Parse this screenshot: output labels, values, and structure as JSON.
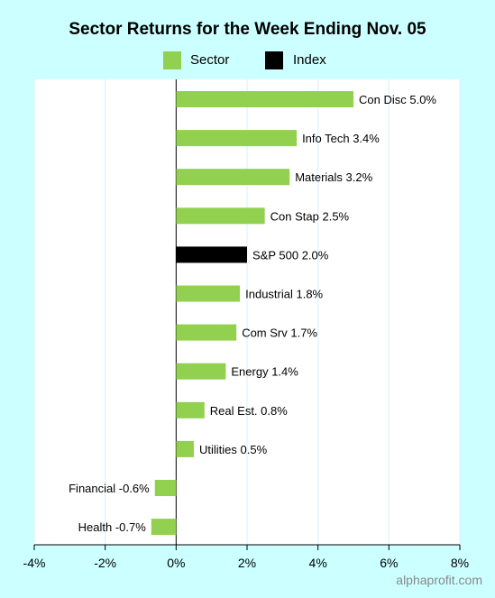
{
  "chart_data": {
    "type": "bar",
    "orientation": "horizontal",
    "title": "Sector Returns for the Week Ending Nov. 05",
    "xlabel": "",
    "ylabel": "",
    "xlim": [
      -4,
      8
    ],
    "x_ticks": [
      "-4%",
      "-2%",
      "0%",
      "2%",
      "4%",
      "6%",
      "8%"
    ],
    "x_tick_values": [
      -4,
      -2,
      0,
      2,
      4,
      6,
      8
    ],
    "grid": "vertical",
    "legend_placement": "top-center",
    "legend": [
      {
        "label": "Sector",
        "color": "#92d050"
      },
      {
        "label": "Index",
        "color": "#000000"
      }
    ],
    "categories": [
      "Con Disc",
      "Info Tech",
      "Materials",
      "Con Stap",
      "S&P 500",
      "Industrial",
      "Com Srv",
      "Energy",
      "Real Est.",
      "Utilities",
      "Financial",
      "Health"
    ],
    "values": [
      5.0,
      3.4,
      3.2,
      2.5,
      2.0,
      1.8,
      1.7,
      1.4,
      0.8,
      0.5,
      -0.6,
      -0.7
    ],
    "bar_labels": [
      "Con Disc 5.0%",
      "Info Tech 3.4%",
      "Materials 3.2%",
      "Con Stap 2.5%",
      "S&P 500 2.0%",
      "Industrial 1.8%",
      "Com Srv 1.7%",
      "Energy 1.4%",
      "Real Est. 0.8%",
      "Utilities 0.5%",
      "Financial -0.6%",
      "Health -0.7%"
    ],
    "groups": [
      "Sector",
      "Sector",
      "Sector",
      "Sector",
      "Index",
      "Sector",
      "Sector",
      "Sector",
      "Sector",
      "Sector",
      "Sector",
      "Sector"
    ]
  },
  "watermark": "alphaprofit.com",
  "colors": {
    "background": "#ccffff",
    "plot_background": "#ffffff",
    "gridline": "#d8f0ff",
    "sector": "#92d050",
    "index": "#000000"
  }
}
